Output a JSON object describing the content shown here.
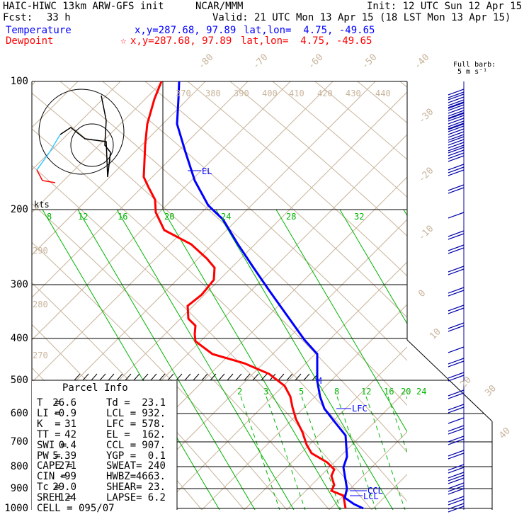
{
  "header": {
    "model": "HAIC-HIWC 13km ARW-GFS init",
    "org": "NCAR/MMM",
    "init": "Init: 12 UTC Sun 12 Apr 15",
    "fcst_label": "Fcst:",
    "fcst_value": "33 h",
    "valid": "Valid: 21 UTC Mon 13 Apr 15 (18 LST Mon 13 Apr 15)"
  },
  "legend": {
    "temperature": {
      "name": "Temperature",
      "xy": "x,y=287.68, 97.89",
      "latlon": "lat,lon=  4.75, -49.65",
      "color": "#0000ff"
    },
    "dewpoint": {
      "name": "Dewpoint",
      "marker": "☆",
      "xy": "x,y=287.68, 97.89",
      "latlon": "lat,lon=  4.75, -49.65",
      "color": "#ff0000"
    }
  },
  "barb_label": {
    "line1": "Full barb:",
    "line2": "5 m s⁻¹"
  },
  "hodograph": {
    "units": "kts"
  },
  "parcel_info": {
    "title": "Parcel Info",
    "rows": [
      [
        "T  =",
        "26.6",
        "Td =",
        "23.1"
      ],
      [
        "LI =",
        "-0.9",
        "LCL =",
        "932."
      ],
      [
        "K  =",
        "31",
        "LFC =",
        "578."
      ],
      [
        "TT =",
        "42",
        "EL =",
        "162."
      ],
      [
        "SWI =",
        "0.4",
        "CCL =",
        "907."
      ],
      [
        "PW =",
        "5.39",
        "YGP =",
        "0.1"
      ],
      [
        "CAPE =",
        "271",
        "SWEAT=",
        "240"
      ],
      [
        "CIN =",
        "-99",
        "HWBZ=",
        "4663."
      ],
      [
        "Tc =",
        "29.0",
        "SHEAR=",
        "23."
      ],
      [
        "SREH =",
        "124",
        "LAPSE=",
        "6.2"
      ]
    ],
    "cell": "CELL = 095/07"
  },
  "chart_data": {
    "type": "line",
    "title": "HAIC-HIWC 13km ARW-GFS init",
    "diagram": "skew-T log-p",
    "pressure_levels_hPa": [
      100,
      200,
      300,
      400,
      500,
      600,
      700,
      800,
      900,
      1000
    ],
    "pressure_labels": [
      "100",
      "200",
      "300",
      "400",
      "500",
      "600",
      "700",
      "800",
      "900",
      "1000"
    ],
    "isotherm_labels_C": [
      "-80",
      "-70",
      "-60",
      "-50",
      "-40",
      "-30",
      "-20",
      "-10",
      "0",
      "10",
      "20",
      "30",
      "40"
    ],
    "dry_adiabat_labels_K": [
      "270",
      "280",
      "290",
      "370",
      "380",
      "390",
      "400",
      "410",
      "420",
      "430",
      "440"
    ],
    "moist_adiabat_labels_C": [
      "8",
      "12",
      "16",
      "20",
      "24",
      "28",
      "32"
    ],
    "mixing_ratio_labels_gkg": [
      "2",
      "3",
      "5",
      "8",
      "12",
      "16",
      "20",
      "24"
    ],
    "levels_marked": {
      "EL": "EL",
      "LFC": "LFC",
      "CCL": "CCL",
      "LCL": "LCL",
      "M": "M"
    },
    "series": [
      {
        "name": "Temperature",
        "color": "#0000ff",
        "points_px": "approx"
      },
      {
        "name": "Dewpoint",
        "color": "#ff0000",
        "points_px": "approx"
      }
    ],
    "colors": {
      "isotherm": "#c8b49b",
      "dry_adiabat": "#c8b49b",
      "moist_adiabat": "#00b400",
      "mixing_ratio": "#00b400",
      "temperature": "#0000ff",
      "dewpoint": "#ff0000"
    }
  }
}
